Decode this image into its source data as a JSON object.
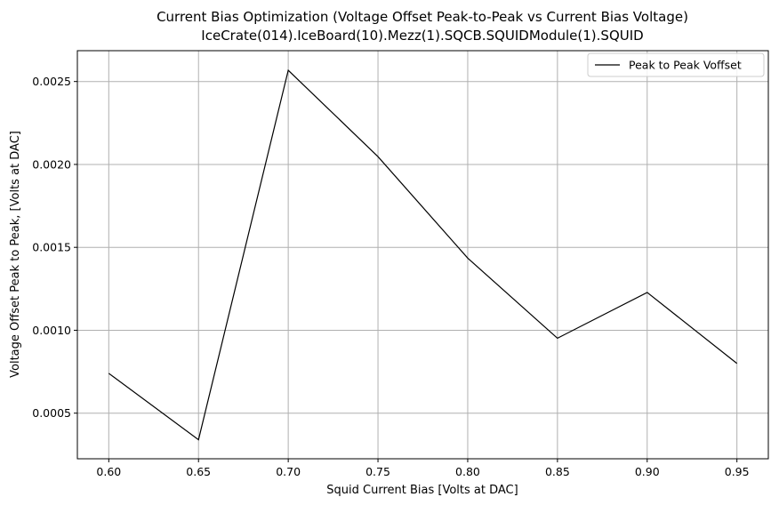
{
  "chart_data": {
    "type": "line",
    "title": "Current Bias Optimization (Voltage Offset Peak-to-Peak vs Current Bias Voltage)",
    "subtitle": "IceCrate(014).IceBoard(10).Mezz(1).SQCB.SQUIDModule(1).SQUID",
    "xlabel": "Squid Current Bias [Volts at DAC]",
    "ylabel": "Voltage Offset Peak to Peak, [Volts at DAC]",
    "xlim": [
      0.5825,
      0.9675
    ],
    "ylim": [
      0.000225,
      0.002686
    ],
    "x_ticks": [
      0.6,
      0.65,
      0.7,
      0.75,
      0.8,
      0.85,
      0.9,
      0.95
    ],
    "x_tick_labels": [
      "0.60",
      "0.65",
      "0.70",
      "0.75",
      "0.80",
      "0.85",
      "0.90",
      "0.95"
    ],
    "y_ticks": [
      0.0005,
      0.001,
      0.0015,
      0.002,
      0.0025
    ],
    "y_tick_labels": [
      "0.0005",
      "0.0010",
      "0.0015",
      "0.0020",
      "0.0025"
    ],
    "grid": true,
    "legend_position": "top-right",
    "series": [
      {
        "name": "Peak to Peak Voffset",
        "color": "#000000",
        "x": [
          0.6,
          0.65,
          0.7,
          0.75,
          0.8,
          0.85,
          0.9,
          0.95
        ],
        "y": [
          0.00074,
          0.00034,
          0.002568,
          0.002047,
          0.001435,
          0.000952,
          0.001228,
          0.0008
        ]
      }
    ]
  }
}
